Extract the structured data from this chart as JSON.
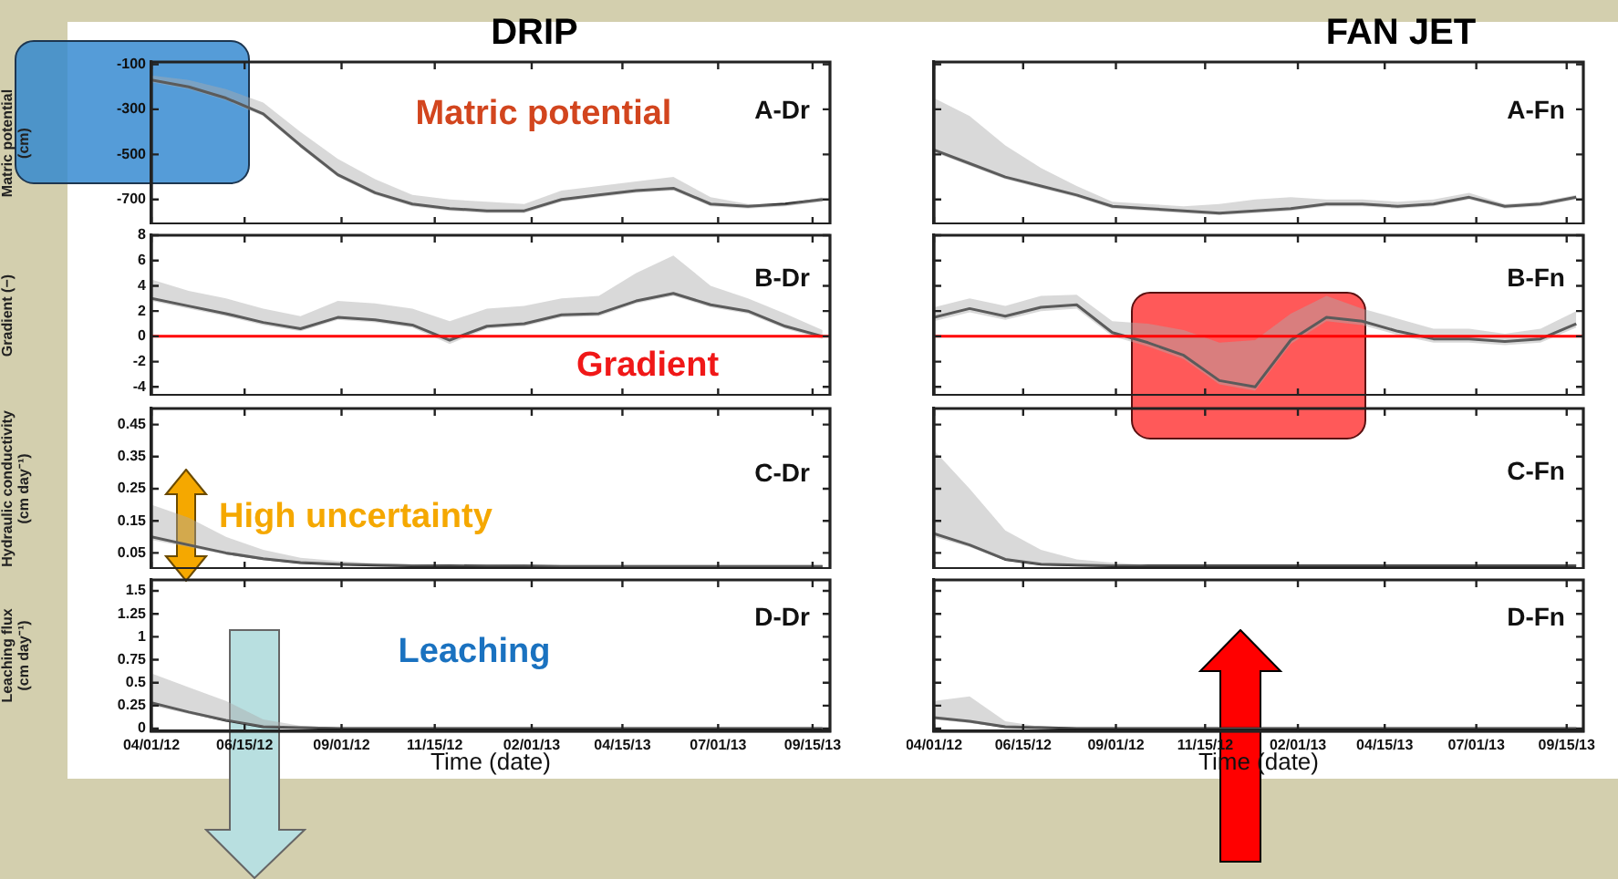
{
  "chart_data": [
    {
      "type": "line",
      "title": "DRIP",
      "ylabel": "Matric potential (cm)",
      "tick_labels": "y",
      "x": [
        "2012-04-01",
        "2012-05-01",
        "2012-05-31",
        "2012-06-30",
        "2012-07-30",
        "2012-08-29",
        "2012-09-28",
        "2012-10-28",
        "2012-11-27",
        "2012-12-27",
        "2013-01-26",
        "2013-02-25",
        "2013-03-27",
        "2013-04-26",
        "2013-05-26",
        "2013-06-25",
        "2013-07-25",
        "2013-08-24",
        "2013-09-23"
      ],
      "xlim": [
        "2012-04-01",
        "2013-09-29"
      ],
      "xticks": [
        {
          "value": "2012-04-01",
          "label": null
        },
        {
          "value": "2012-06-15",
          "label": null
        },
        {
          "value": "2012-09-01",
          "label": null
        },
        {
          "value": "2012-11-15",
          "label": null
        },
        {
          "value": "2013-02-01",
          "label": null
        },
        {
          "value": "2013-04-15",
          "label": null
        },
        {
          "value": "2013-07-01",
          "label": null
        },
        {
          "value": "2013-09-15",
          "label": null
        }
      ],
      "ylim": [
        -810,
        -90
      ],
      "yticks": [
        -100,
        -300,
        -500,
        -700
      ],
      "series": [
        {
          "color": "#1a1a1a",
          "values": [
            -170,
            -200,
            -250,
            -320,
            -460,
            -590,
            -670,
            -720,
            -740,
            -750,
            -750,
            -700,
            -680,
            -660,
            -650,
            -720,
            -730,
            -720,
            -700
          ],
          "upper": [
            -150,
            -170,
            -210,
            -270,
            -400,
            -520,
            -610,
            -680,
            -700,
            -710,
            -720,
            -660,
            -640,
            -620,
            -600,
            -690,
            -720,
            -720,
            -690
          ],
          "lower": [
            -180,
            -210,
            -260,
            -330,
            -470,
            -600,
            -680,
            -730,
            -750,
            -760,
            -760,
            -710,
            -690,
            -670,
            -660,
            -730,
            -740,
            -730,
            -710
          ]
        }
      ],
      "annotations": [
        "Matric potential",
        "A-Dr"
      ]
    },
    {
      "type": "line",
      "title": "FAN JET",
      "tick_labels": false,
      "x": [
        "2012-04-01",
        "2012-05-01",
        "2012-05-31",
        "2012-06-30",
        "2012-07-30",
        "2012-08-29",
        "2012-09-28",
        "2012-10-28",
        "2012-11-27",
        "2012-12-27",
        "2013-01-26",
        "2013-02-25",
        "2013-03-27",
        "2013-04-26",
        "2013-05-26",
        "2013-06-25",
        "2013-07-25",
        "2013-08-24",
        "2013-09-23"
      ],
      "xlim": [
        "2012-04-01",
        "2013-09-29"
      ],
      "xticks": [
        {
          "value": "2012-04-01",
          "label": null
        },
        {
          "value": "2012-06-15",
          "label": null
        },
        {
          "value": "2012-09-01",
          "label": null
        },
        {
          "value": "2012-11-15",
          "label": null
        },
        {
          "value": "2013-02-01",
          "label": null
        },
        {
          "value": "2013-04-15",
          "label": null
        },
        {
          "value": "2013-07-01",
          "label": null
        },
        {
          "value": "2013-09-15",
          "label": null
        }
      ],
      "ylim": [
        -810,
        -90
      ],
      "yticks": [
        {
          "value": -100,
          "label": null
        },
        {
          "value": -300,
          "label": null
        },
        {
          "value": -500,
          "label": null
        },
        {
          "value": -700,
          "label": null
        }
      ],
      "series": [
        {
          "color": "#1a1a1a",
          "values": [
            -480,
            -540,
            -600,
            -640,
            -680,
            -730,
            -740,
            -750,
            -760,
            -750,
            -740,
            -720,
            -720,
            -730,
            -720,
            -690,
            -730,
            -720,
            -690
          ],
          "upper": [
            -250,
            -330,
            -460,
            -560,
            -640,
            -710,
            -720,
            -730,
            -720,
            -700,
            -690,
            -700,
            -700,
            -710,
            -700,
            -670,
            -720,
            -710,
            -680
          ],
          "lower": [
            -490,
            -550,
            -610,
            -650,
            -690,
            -740,
            -750,
            -760,
            -770,
            -760,
            -750,
            -730,
            -730,
            -740,
            -730,
            -700,
            -740,
            -730,
            -700
          ]
        }
      ],
      "annotations": [
        "A-Fn"
      ]
    },
    {
      "type": "line",
      "ylabel": "Gradient (−)",
      "tick_labels": "y",
      "x": [
        "2012-04-01",
        "2012-05-01",
        "2012-05-31",
        "2012-06-30",
        "2012-07-30",
        "2012-08-29",
        "2012-09-28",
        "2012-10-28",
        "2012-11-27",
        "2012-12-27",
        "2013-01-26",
        "2013-02-25",
        "2013-03-27",
        "2013-04-26",
        "2013-05-26",
        "2013-06-25",
        "2013-07-25",
        "2013-08-24",
        "2013-09-23"
      ],
      "xlim": [
        "2012-04-01",
        "2013-09-29"
      ],
      "xticks": [
        {
          "value": "2012-04-01",
          "label": null
        },
        {
          "value": "2012-06-15",
          "label": null
        },
        {
          "value": "2012-09-01",
          "label": null
        },
        {
          "value": "2012-11-15",
          "label": null
        },
        {
          "value": "2013-02-01",
          "label": null
        },
        {
          "value": "2013-04-15",
          "label": null
        },
        {
          "value": "2013-07-01",
          "label": null
        },
        {
          "value": "2013-09-15",
          "label": null
        }
      ],
      "ylim": [
        -4.7,
        8
      ],
      "yticks": [
        -4,
        -2,
        0,
        2,
        4,
        6,
        8
      ],
      "series": [
        {
          "color": "#1a1a1a",
          "values": [
            3.0,
            2.4,
            1.8,
            1.1,
            0.6,
            1.5,
            1.3,
            0.9,
            -0.3,
            0.8,
            1.0,
            1.7,
            1.8,
            2.8,
            3.4,
            2.5,
            2.0,
            0.8,
            0
          ],
          "upper": [
            4.5,
            3.6,
            3.0,
            2.2,
            1.6,
            2.8,
            2.6,
            2.2,
            1.2,
            2.2,
            2.4,
            3.0,
            3.2,
            5.0,
            6.4,
            4.0,
            3.0,
            1.8,
            0.5
          ],
          "lower": [
            2.8,
            2.2,
            1.6,
            0.9,
            0.4,
            1.3,
            1.1,
            0.7,
            -0.6,
            0.6,
            0.8,
            1.5,
            1.6,
            2.6,
            3.2,
            2.3,
            1.8,
            0.6,
            -0.2
          ]
        }
      ],
      "ref_lines": [
        {
          "axis": "y",
          "value": 0,
          "color": "#ff0000"
        }
      ],
      "annotations": [
        "Gradient",
        "B-Dr"
      ]
    },
    {
      "type": "line",
      "tick_labels": false,
      "x": [
        "2012-04-01",
        "2012-05-01",
        "2012-05-31",
        "2012-06-30",
        "2012-07-30",
        "2012-08-29",
        "2012-09-28",
        "2012-10-28",
        "2012-11-27",
        "2012-12-27",
        "2013-01-26",
        "2013-02-25",
        "2013-03-27",
        "2013-04-26",
        "2013-05-26",
        "2013-06-25",
        "2013-07-25",
        "2013-08-24",
        "2013-09-23"
      ],
      "xlim": [
        "2012-04-01",
        "2013-09-29"
      ],
      "xticks": [
        {
          "value": "2012-04-01",
          "label": null
        },
        {
          "value": "2012-06-15",
          "label": null
        },
        {
          "value": "2012-09-01",
          "label": null
        },
        {
          "value": "2012-11-15",
          "label": null
        },
        {
          "value": "2013-02-01",
          "label": null
        },
        {
          "value": "2013-04-15",
          "label": null
        },
        {
          "value": "2013-07-01",
          "label": null
        },
        {
          "value": "2013-09-15",
          "label": null
        }
      ],
      "ylim": [
        -4.7,
        8
      ],
      "yticks": [
        {
          "value": -4,
          "label": null
        },
        {
          "value": -2,
          "label": null
        },
        {
          "value": 0,
          "label": null
        },
        {
          "value": 2,
          "label": null
        },
        {
          "value": 4,
          "label": null
        },
        {
          "value": 6,
          "label": null
        },
        {
          "value": 8,
          "label": null
        }
      ],
      "series": [
        {
          "color": "#1a1a1a",
          "values": [
            1.5,
            2.2,
            1.6,
            2.3,
            2.5,
            0.3,
            -0.5,
            -1.5,
            -3.5,
            -4.0,
            -0.3,
            1.5,
            1.2,
            0.4,
            -0.2,
            -0.2,
            -0.4,
            -0.2,
            1.0
          ],
          "upper": [
            2.3,
            3.0,
            2.4,
            3.2,
            3.3,
            1.2,
            1.0,
            0.5,
            -0.5,
            -0.3,
            1.8,
            3.2,
            2.2,
            1.4,
            0.6,
            0.6,
            0.2,
            0.6,
            2.0
          ],
          "lower": [
            1.2,
            1.9,
            1.3,
            2.0,
            2.2,
            0,
            -0.8,
            -1.8,
            -3.8,
            -4.3,
            -0.6,
            1.2,
            0.9,
            0.1,
            -0.5,
            -0.5,
            -0.7,
            -0.5,
            0.7
          ]
        }
      ],
      "ref_lines": [
        {
          "axis": "y",
          "value": 0,
          "color": "#ff0000"
        }
      ],
      "annotations": [
        "B-Fn"
      ]
    },
    {
      "type": "line",
      "ylabel": "Hydraulic conductivity (cm day⁻¹)",
      "tick_labels": "y",
      "x": [
        "2012-04-01",
        "2012-05-01",
        "2012-05-31",
        "2012-06-30",
        "2012-07-30",
        "2012-08-29",
        "2012-09-28",
        "2012-10-28",
        "2012-11-27",
        "2012-12-27",
        "2013-01-26",
        "2013-02-25",
        "2013-03-27",
        "2013-04-26",
        "2013-05-26",
        "2013-06-25",
        "2013-07-25",
        "2013-08-24",
        "2013-09-23"
      ],
      "xlim": [
        "2012-04-01",
        "2013-09-29"
      ],
      "xticks": [
        {
          "value": "2012-04-01",
          "label": null
        },
        {
          "value": "2012-06-15",
          "label": null
        },
        {
          "value": "2012-09-01",
          "label": null
        },
        {
          "value": "2012-11-15",
          "label": null
        },
        {
          "value": "2013-02-01",
          "label": null
        },
        {
          "value": "2013-04-15",
          "label": null
        },
        {
          "value": "2013-07-01",
          "label": null
        },
        {
          "value": "2013-09-15",
          "label": null
        }
      ],
      "ylim": [
        0,
        0.5
      ],
      "yticks": [
        0.05,
        0.15,
        0.25,
        0.35,
        0.45
      ],
      "series": [
        {
          "color": "#1a1a1a",
          "values": [
            0.1,
            0.075,
            0.05,
            0.032,
            0.02,
            0.015,
            0.012,
            0.01,
            0.01,
            0.009,
            0.009,
            0.008,
            0.008,
            0.008,
            0.008,
            0.008,
            0.008,
            0.008,
            0.008
          ],
          "upper": [
            0.2,
            0.16,
            0.1,
            0.06,
            0.035,
            0.025,
            0.018,
            0.014,
            0.013,
            0.013,
            0.012,
            0.012,
            0.012,
            0.012,
            0.012,
            0.012,
            0.012,
            0.012,
            0.012
          ],
          "lower": [
            0.09,
            0.068,
            0.045,
            0.028,
            0.017,
            0.012,
            0.01,
            0.008,
            0.008,
            0.007,
            0.007,
            0.006,
            0.006,
            0.006,
            0.006,
            0.006,
            0.006,
            0.006,
            0.006
          ]
        }
      ],
      "annotations": [
        "High uncertainty",
        "C-Dr"
      ]
    },
    {
      "type": "line",
      "tick_labels": false,
      "x": [
        "2012-04-01",
        "2012-05-01",
        "2012-05-31",
        "2012-06-30",
        "2012-07-30",
        "2012-08-29",
        "2012-09-28",
        "2012-10-28",
        "2012-11-27",
        "2012-12-27",
        "2013-01-26",
        "2013-02-25",
        "2013-03-27",
        "2013-04-26",
        "2013-05-26",
        "2013-06-25",
        "2013-07-25",
        "2013-08-24",
        "2013-09-23"
      ],
      "xlim": [
        "2012-04-01",
        "2013-09-29"
      ],
      "xticks": [
        {
          "value": "2012-04-01",
          "label": null
        },
        {
          "value": "2012-06-15",
          "label": null
        },
        {
          "value": "2012-09-01",
          "label": null
        },
        {
          "value": "2012-11-15",
          "label": null
        },
        {
          "value": "2013-02-01",
          "label": null
        },
        {
          "value": "2013-04-15",
          "label": null
        },
        {
          "value": "2013-07-01",
          "label": null
        },
        {
          "value": "2013-09-15",
          "label": null
        }
      ],
      "ylim": [
        0,
        0.5
      ],
      "yticks": [
        {
          "value": 0.05,
          "label": null
        },
        {
          "value": 0.15,
          "label": null
        },
        {
          "value": 0.25,
          "label": null
        },
        {
          "value": 0.35,
          "label": null
        },
        {
          "value": 0.45,
          "label": null
        }
      ],
      "series": [
        {
          "color": "#1a1a1a",
          "values": [
            0.11,
            0.075,
            0.03,
            0.015,
            0.012,
            0.01,
            0.01,
            0.01,
            0.01,
            0.01,
            0.01,
            0.01,
            0.01,
            0.01,
            0.01,
            0.01,
            0.01,
            0.01,
            0.01
          ],
          "upper": [
            0.37,
            0.25,
            0.12,
            0.06,
            0.03,
            0.02,
            0.013,
            0.013,
            0.013,
            0.013,
            0.013,
            0.013,
            0.013,
            0.013,
            0.013,
            0.013,
            0.013,
            0.013,
            0.013
          ],
          "lower": [
            0.1,
            0.068,
            0.026,
            0.012,
            0.009,
            0.008,
            0.008,
            0.008,
            0.008,
            0.008,
            0.008,
            0.008,
            0.008,
            0.008,
            0.008,
            0.008,
            0.008,
            0.008,
            0.008
          ]
        }
      ],
      "annotations": [
        "C-Fn"
      ]
    },
    {
      "type": "line",
      "ylabel": "Leaching flux (cm day⁻¹)",
      "xlabel": "Time (date)",
      "x": [
        "2012-04-01",
        "2012-05-01",
        "2012-05-31",
        "2012-06-30",
        "2012-07-30",
        "2012-08-29",
        "2012-09-28",
        "2012-10-28",
        "2012-11-27",
        "2012-12-27",
        "2013-01-26",
        "2013-02-25",
        "2013-03-27",
        "2013-04-26",
        "2013-05-26",
        "2013-06-25",
        "2013-07-25",
        "2013-08-24",
        "2013-09-23"
      ],
      "xlim": [
        "2012-04-01",
        "2013-09-29"
      ],
      "xticks": [
        {
          "value": "2012-04-01",
          "label": "04/01/12"
        },
        {
          "value": "2012-06-15",
          "label": "06/15/12"
        },
        {
          "value": "2012-09-01",
          "label": "09/01/12"
        },
        {
          "value": "2012-11-15",
          "label": "11/15/12"
        },
        {
          "value": "2013-02-01",
          "label": "02/01/13"
        },
        {
          "value": "2013-04-15",
          "label": "04/15/13"
        },
        {
          "value": "2013-07-01",
          "label": "07/01/13"
        },
        {
          "value": "2013-09-15",
          "label": "09/15/13"
        }
      ],
      "ylim": [
        -0.03,
        1.62
      ],
      "yticks": [
        0,
        0.25,
        0.5,
        0.75,
        1,
        1.25,
        1.5
      ],
      "series": [
        {
          "color": "#1a1a1a",
          "values": [
            0.28,
            0.18,
            0.09,
            0.02,
            0.01,
            0,
            0,
            0,
            0,
            0,
            0,
            0,
            0,
            0,
            0,
            0,
            0,
            0,
            0
          ],
          "upper": [
            0.6,
            0.45,
            0.3,
            0.1,
            0.03,
            0.01,
            0.01,
            0.01,
            0.01,
            0.01,
            0.01,
            0.01,
            0.01,
            0.01,
            0.01,
            0.01,
            0.01,
            0.01,
            0.01
          ],
          "lower": [
            0.25,
            0.16,
            0.08,
            0.01,
            0,
            0,
            0,
            0,
            0,
            0,
            0,
            0,
            0,
            0,
            0,
            0,
            0,
            0,
            0
          ]
        }
      ],
      "annotations": [
        "Leaching",
        "D-Dr"
      ]
    },
    {
      "type": "line",
      "xlabel": "Time (date)",
      "tick_labels": "x",
      "x": [
        "2012-04-01",
        "2012-05-01",
        "2012-05-31",
        "2012-06-30",
        "2012-07-30",
        "2012-08-29",
        "2012-09-28",
        "2012-10-28",
        "2012-11-27",
        "2012-12-27",
        "2013-01-26",
        "2013-02-25",
        "2013-03-27",
        "2013-04-26",
        "2013-05-26",
        "2013-06-25",
        "2013-07-25",
        "2013-08-24",
        "2013-09-23"
      ],
      "xlim": [
        "2012-04-01",
        "2013-09-29"
      ],
      "xticks": [
        {
          "value": "2012-04-01",
          "label": "04/01/12"
        },
        {
          "value": "2012-06-15",
          "label": "06/15/12"
        },
        {
          "value": "2012-09-01",
          "label": "09/01/12"
        },
        {
          "value": "2012-11-15",
          "label": "11/15/12"
        },
        {
          "value": "2013-02-01",
          "label": "02/01/13"
        },
        {
          "value": "2013-04-15",
          "label": "04/15/13"
        },
        {
          "value": "2013-07-01",
          "label": "07/01/13"
        },
        {
          "value": "2013-09-15",
          "label": "09/15/13"
        }
      ],
      "ylim": [
        -0.03,
        1.62
      ],
      "yticks": [
        {
          "value": 0,
          "label": null
        },
        {
          "value": 0.25,
          "label": null
        },
        {
          "value": 0.5,
          "label": null
        },
        {
          "value": 0.75,
          "label": null
        },
        {
          "value": 1,
          "label": null
        },
        {
          "value": 1.25,
          "label": null
        },
        {
          "value": 1.5,
          "label": null
        }
      ],
      "series": [
        {
          "color": "#1a1a1a",
          "values": [
            0.12,
            0.08,
            0.02,
            0.01,
            0,
            0,
            0,
            0,
            0,
            0,
            0,
            0,
            0,
            0,
            0,
            0,
            0,
            0,
            0
          ],
          "upper": [
            0.3,
            0.35,
            0.08,
            0.02,
            0.01,
            0.01,
            0.01,
            0.01,
            0.01,
            0.01,
            0.01,
            0.01,
            0.01,
            0.01,
            0.01,
            0.01,
            0.01,
            0.01,
            0.01
          ],
          "lower": [
            0.1,
            0.06,
            0.01,
            0,
            0,
            0,
            0,
            0,
            0,
            0,
            0,
            0,
            0,
            0,
            0,
            0,
            0,
            0,
            0
          ]
        }
      ],
      "annotations": [
        "D-Fn"
      ]
    }
  ]
}
